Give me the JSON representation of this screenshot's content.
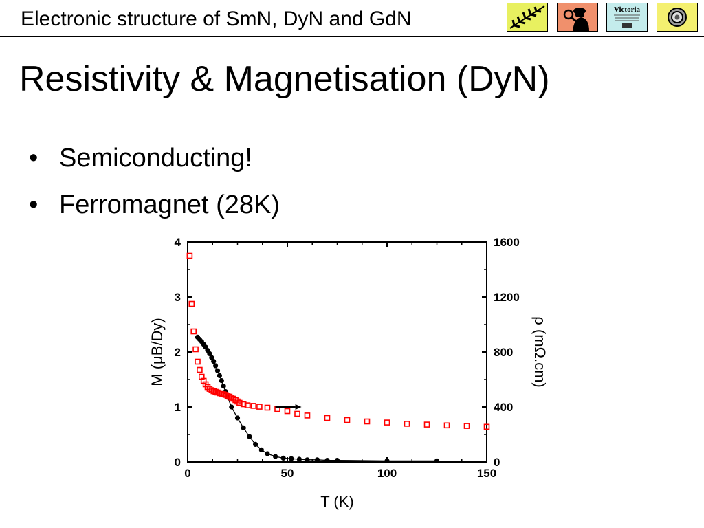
{
  "header": {
    "title": "Electronic structure of SmN, DyN and GdN",
    "logos": [
      {
        "icon": "fern-icon",
        "bg": "#e8f060"
      },
      {
        "icon": "detective-icon",
        "bg": "#f0906c"
      },
      {
        "icon": "victoria-university-crest",
        "bg": "#c4ecec",
        "text": "Victoria"
      },
      {
        "icon": "spiral-icon",
        "bg": "#f4f070"
      }
    ]
  },
  "slide": {
    "title": "Resistivity & Magnetisation (DyN)",
    "bullets": [
      "Semiconducting!",
      "Ferromagnet (28K)"
    ]
  },
  "chart_data": {
    "type": "scatter",
    "xlabel": "T (K)",
    "ylabel_left": "M (μB/Dy)",
    "ylabel_right": "ρ (mΩ.cm)",
    "xlim": [
      0,
      150
    ],
    "ylim_left": [
      0,
      4
    ],
    "ylim_right": [
      0,
      1600
    ],
    "x_ticks": [
      0,
      50,
      100,
      150
    ],
    "y_left_ticks": [
      0,
      1,
      2,
      3,
      4
    ],
    "y_right_ticks": [
      0,
      400,
      800,
      1200,
      1600
    ],
    "grid": false,
    "series": [
      {
        "axis": "left",
        "marker": "filled-circle",
        "color": "#000000",
        "x": [
          5,
          6,
          7,
          8,
          9,
          10,
          11,
          12,
          13,
          14,
          15,
          16,
          17,
          18,
          19,
          20,
          22,
          25,
          28,
          31,
          34,
          37,
          40,
          44,
          48,
          52,
          56,
          60,
          65,
          70,
          75,
          100,
          125
        ],
        "y": [
          2.27,
          2.23,
          2.19,
          2.14,
          2.09,
          2.03,
          1.97,
          1.9,
          1.83,
          1.75,
          1.66,
          1.57,
          1.48,
          1.38,
          1.28,
          1.18,
          1.0,
          0.8,
          0.62,
          0.46,
          0.32,
          0.22,
          0.15,
          0.1,
          0.07,
          0.06,
          0.05,
          0.04,
          0.04,
          0.03,
          0.03,
          0.02,
          0.02
        ]
      },
      {
        "axis": "right",
        "marker": "open-square",
        "color": "#ff0000",
        "x": [
          1,
          2,
          3,
          4,
          5,
          6,
          7,
          8,
          9,
          10,
          11,
          12,
          13,
          14,
          15,
          16,
          17,
          18,
          19,
          20,
          21,
          22,
          23,
          24,
          25,
          26,
          28,
          30,
          33,
          36,
          40,
          45,
          50,
          55,
          60,
          70,
          80,
          90,
          100,
          110,
          120,
          130,
          140,
          150
        ],
        "y": [
          1500,
          1150,
          950,
          820,
          730,
          670,
          620,
          590,
          565,
          545,
          532,
          522,
          515,
          510,
          505,
          500,
          497,
          492,
          488,
          482,
          475,
          468,
          460,
          450,
          440,
          430,
          420,
          412,
          408,
          402,
          395,
          385,
          370,
          350,
          338,
          320,
          305,
          295,
          287,
          278,
          272,
          266,
          262,
          256
        ]
      }
    ],
    "annotations": [
      {
        "type": "arrow",
        "direction": "right",
        "points_to": "right-axis"
      }
    ]
  }
}
